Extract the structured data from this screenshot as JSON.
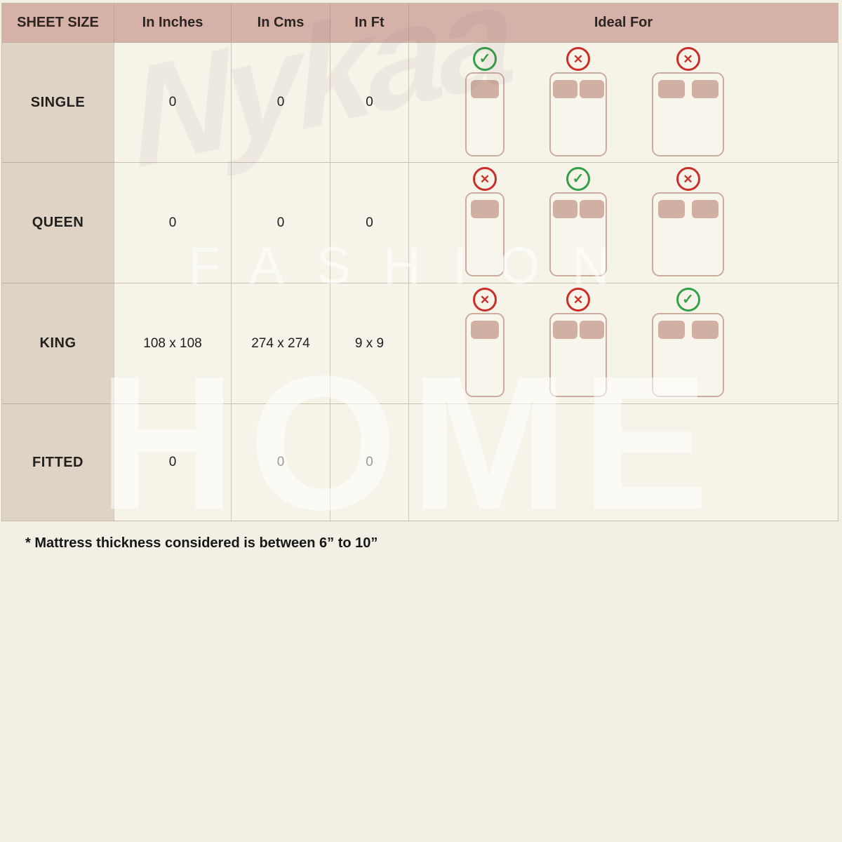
{
  "chart_data": {
    "type": "table",
    "columns": [
      "SHEET SIZE",
      "In Inches",
      "In Cms",
      "In Ft",
      "Ideal For"
    ],
    "rows": [
      {
        "label": "SINGLE",
        "values": [
          "0",
          "0",
          "0"
        ],
        "ideal_for": [
          "check",
          "cross",
          "cross"
        ]
      },
      {
        "label": "QUEEN",
        "values": [
          "0",
          "0",
          "0"
        ],
        "ideal_for": [
          "cross",
          "check",
          "cross"
        ]
      },
      {
        "label": "KING",
        "values": [
          "108 x 108",
          "274 x 274",
          "9 x 9"
        ],
        "ideal_for": [
          "cross",
          "cross",
          "check"
        ]
      },
      {
        "label": "FITTED",
        "values": [
          "0",
          "0",
          "0"
        ],
        "ideal_for": []
      }
    ],
    "ideal_for_options": [
      "single-bed",
      "double-bed",
      "king-bed"
    ],
    "footnote": "* Mattress thickness considered is between 6” to 10”"
  },
  "watermark": {
    "brand": "Nykaa",
    "fashion": "FASHION",
    "home": "HOME"
  },
  "icons": {
    "approved": "check-circle-icon",
    "rejected": "cross-circle-icon"
  },
  "colors": {
    "page_background": "#f2efe4",
    "header_background": "#d5b1a8",
    "label_column_background": "#ded3c5",
    "cell_background": "#f6f3e9",
    "bed_outline": "#cbada0",
    "pillow_fill": "#cfb0a2",
    "check_green": "#33a047",
    "cross_red": "#cb2e29",
    "text": "#1e1e1e"
  }
}
